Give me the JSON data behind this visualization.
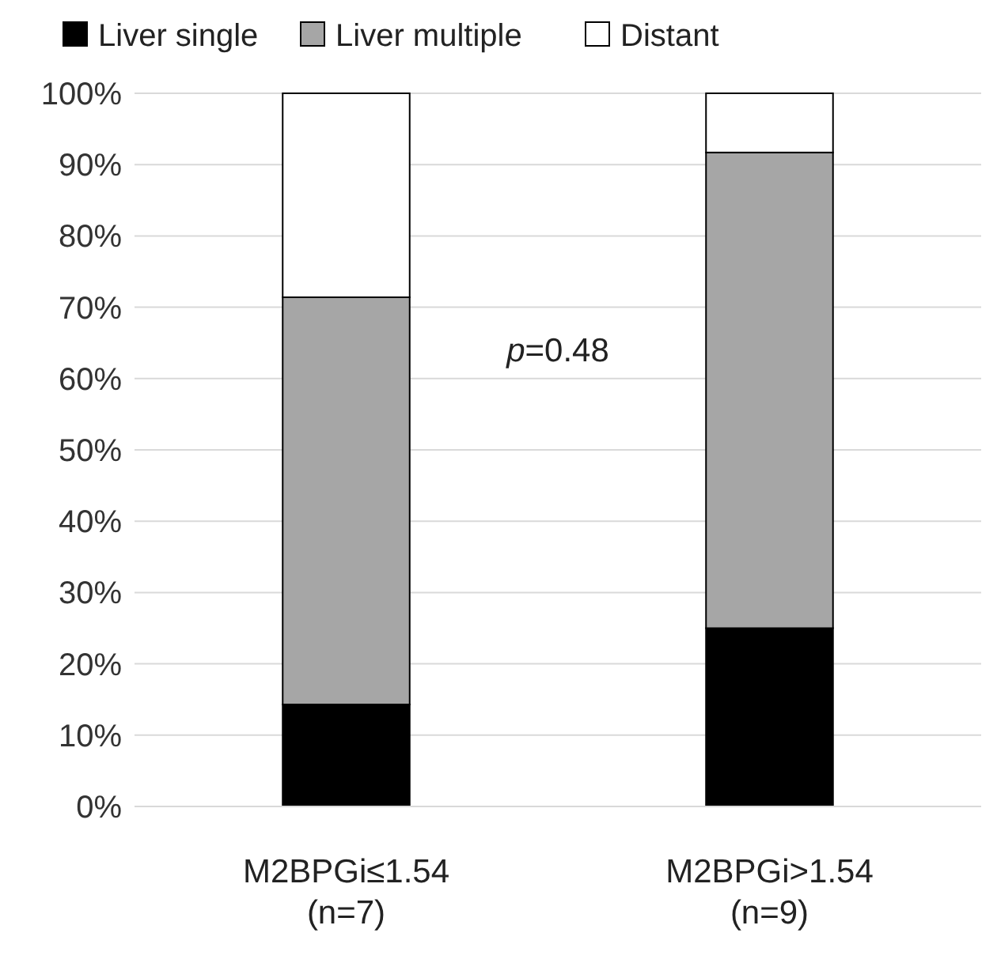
{
  "chart_data": {
    "type": "bar",
    "stacked": true,
    "categories": [
      "M2BPGi≤1.54\n(n=7)",
      "M2BPGi>1.54\n(n=9)"
    ],
    "series": [
      {
        "name": "Liver single",
        "color": "#000000",
        "values": [
          14.3,
          25
        ]
      },
      {
        "name": "Liver multiple",
        "color": "#a6a6a6",
        "values": [
          57.1,
          66.7
        ]
      },
      {
        "name": "Distant",
        "color": "#ffffff",
        "values": [
          28.6,
          8.3
        ]
      }
    ],
    "ylim": [
      0,
      100
    ],
    "yticks": [
      {
        "value": 0,
        "label": "0%"
      },
      {
        "value": 10,
        "label": "10%"
      },
      {
        "value": 20,
        "label": "20%"
      },
      {
        "value": 30,
        "label": "30%"
      },
      {
        "value": 40,
        "label": "40%"
      },
      {
        "value": 50,
        "label": "50%"
      },
      {
        "value": 60,
        "label": "60%"
      },
      {
        "value": 70,
        "label": "70%"
      },
      {
        "value": 80,
        "label": "80%"
      },
      {
        "value": 90,
        "label": "90%"
      },
      {
        "value": 100,
        "label": "100%"
      }
    ],
    "grid": "y",
    "legend": "top",
    "annotations": [
      "p=0.48"
    ]
  }
}
